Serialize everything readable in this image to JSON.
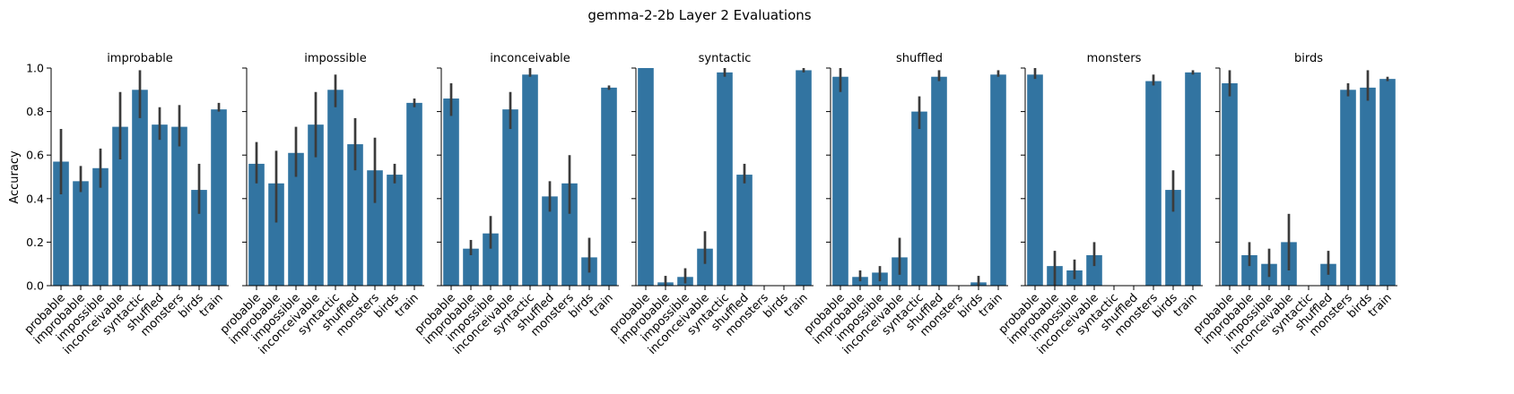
{
  "figure": {
    "title": "gemma-2-2b Layer 2 Evaluations"
  },
  "chart_data": {
    "type": "bar",
    "ylabel": "Accuracy",
    "ylim": [
      0,
      1
    ],
    "yticks": [
      "0.0",
      "0.2",
      "0.4",
      "0.6",
      "0.8",
      "1.0"
    ],
    "categories": [
      "probable",
      "improbable",
      "impossible",
      "inconceivable",
      "syntactic",
      "shuffled",
      "monsters",
      "birds",
      "train"
    ],
    "bar_color": "#3274a1",
    "error_color": "#3b3b3b",
    "panels": [
      {
        "title": "improbable",
        "values": [
          0.57,
          0.48,
          0.54,
          0.73,
          0.9,
          0.74,
          0.73,
          0.44,
          0.81
        ],
        "errors": [
          [
            0.42,
            0.72
          ],
          [
            0.43,
            0.55
          ],
          [
            0.45,
            0.63
          ],
          [
            0.58,
            0.89
          ],
          [
            0.77,
            0.99
          ],
          [
            0.67,
            0.82
          ],
          [
            0.64,
            0.83
          ],
          [
            0.33,
            0.56
          ],
          [
            0.8,
            0.84
          ]
        ]
      },
      {
        "title": "impossible",
        "values": [
          0.56,
          0.47,
          0.61,
          0.74,
          0.9,
          0.65,
          0.53,
          0.51,
          0.84
        ],
        "errors": [
          [
            0.47,
            0.66
          ],
          [
            0.29,
            0.62
          ],
          [
            0.5,
            0.73
          ],
          [
            0.59,
            0.89
          ],
          [
            0.82,
            0.97
          ],
          [
            0.53,
            0.77
          ],
          [
            0.38,
            0.68
          ],
          [
            0.47,
            0.56
          ],
          [
            0.82,
            0.86
          ]
        ]
      },
      {
        "title": "inconceivable",
        "values": [
          0.86,
          0.17,
          0.24,
          0.81,
          0.97,
          0.41,
          0.47,
          0.13,
          0.91
        ],
        "errors": [
          [
            0.78,
            0.93
          ],
          [
            0.14,
            0.21
          ],
          [
            0.17,
            0.32
          ],
          [
            0.72,
            0.89
          ],
          [
            0.96,
            1.0
          ],
          [
            0.34,
            0.48
          ],
          [
            0.33,
            0.6
          ],
          [
            0.06,
            0.22
          ],
          [
            0.9,
            0.92
          ]
        ]
      },
      {
        "title": "syntactic",
        "values": [
          1.0,
          0.015,
          0.04,
          0.17,
          0.98,
          0.51,
          0.0,
          0.0,
          0.99
        ],
        "errors": [
          null,
          [
            0.0,
            0.045
          ],
          [
            0.01,
            0.08
          ],
          [
            0.1,
            0.25
          ],
          [
            0.96,
            1.0
          ],
          [
            0.47,
            0.56
          ],
          null,
          null,
          [
            0.98,
            1.0
          ]
        ]
      },
      {
        "title": "shuffled",
        "values": [
          0.96,
          0.04,
          0.06,
          0.13,
          0.8,
          0.96,
          0.0,
          0.015,
          0.97
        ],
        "errors": [
          [
            0.89,
            1.0
          ],
          [
            0.02,
            0.07
          ],
          [
            0.02,
            0.09
          ],
          [
            0.05,
            0.22
          ],
          [
            0.72,
            0.87
          ],
          [
            0.94,
            0.99
          ],
          null,
          [
            0.0,
            0.045
          ],
          [
            0.96,
            0.99
          ]
        ]
      },
      {
        "title": "monsters",
        "values": [
          0.97,
          0.09,
          0.07,
          0.14,
          0.0,
          0.0,
          0.94,
          0.44,
          0.98
        ],
        "errors": [
          [
            0.95,
            1.0
          ],
          [
            0.0,
            0.16
          ],
          [
            0.03,
            0.12
          ],
          [
            0.09,
            0.2
          ],
          null,
          null,
          [
            0.92,
            0.97
          ],
          [
            0.34,
            0.53
          ],
          [
            0.97,
            0.99
          ]
        ]
      },
      {
        "title": "birds",
        "values": [
          0.93,
          0.14,
          0.1,
          0.2,
          0.0,
          0.1,
          0.9,
          0.91,
          0.95
        ],
        "errors": [
          [
            0.87,
            0.99
          ],
          [
            0.09,
            0.2
          ],
          [
            0.04,
            0.17
          ],
          [
            0.07,
            0.33
          ],
          null,
          [
            0.05,
            0.16
          ],
          [
            0.87,
            0.93
          ],
          [
            0.85,
            0.99
          ],
          [
            0.94,
            0.96
          ]
        ]
      }
    ]
  }
}
